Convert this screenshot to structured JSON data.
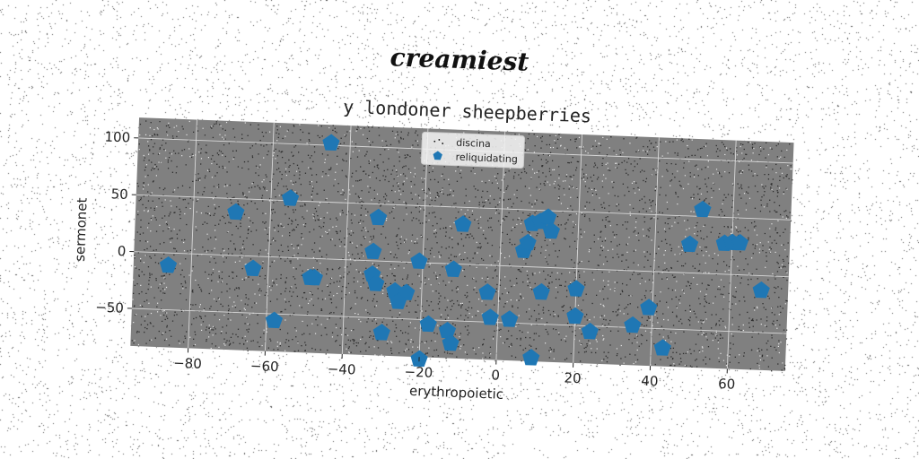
{
  "suptitle": "creamiest",
  "chart_data": {
    "type": "scatter",
    "title": "y londoner sheepberries",
    "xlabel": "erythropoietic",
    "ylabel": "sermonet",
    "xlim": [
      -95,
      75
    ],
    "ylim": [
      -83,
      118
    ],
    "xticks": [
      -80,
      -60,
      -40,
      -20,
      0,
      20,
      40,
      60
    ],
    "yticks": [
      -50,
      0,
      50,
      100
    ],
    "grid": true,
    "legend_position": "upper center",
    "background": "#808080",
    "series": [
      {
        "name": "discina",
        "marker": "dot",
        "color": "#111111",
        "note": "dense noise cloud of tiny dots"
      },
      {
        "name": "reliquidating",
        "marker": "pentagon",
        "color": "#1f77b4",
        "points": [
          [
            -45,
            102
          ],
          [
            -55,
            52
          ],
          [
            -69,
            38
          ],
          [
            -32,
            38
          ],
          [
            -10,
            35
          ],
          [
            -33,
            8
          ],
          [
            -21,
            1
          ],
          [
            -12,
            -5
          ],
          [
            -33,
            -12
          ],
          [
            -32,
            -20
          ],
          [
            -48,
            -17
          ],
          [
            -49,
            -17
          ],
          [
            -86,
            -11
          ],
          [
            -64,
            -11
          ],
          [
            -27,
            -26
          ],
          [
            -24,
            -27
          ],
          [
            -26,
            -35
          ],
          [
            -3,
            -24
          ],
          [
            -2,
            -46
          ],
          [
            3,
            -47
          ],
          [
            -13,
            -59
          ],
          [
            -18,
            -54
          ],
          [
            -58,
            -56
          ],
          [
            -30,
            -63
          ],
          [
            -12,
            -70
          ],
          [
            -20,
            -85
          ],
          [
            9,
            -80
          ],
          [
            11,
            -22
          ],
          [
            20,
            -18
          ],
          [
            20,
            -42
          ],
          [
            24,
            -55
          ],
          [
            35,
            -48
          ],
          [
            39,
            -32
          ],
          [
            43,
            -67
          ],
          [
            6,
            14
          ],
          [
            7,
            21
          ],
          [
            8,
            38
          ],
          [
            10,
            40
          ],
          [
            12,
            44
          ],
          [
            13,
            32
          ],
          [
            49,
            25
          ],
          [
            52,
            56
          ],
          [
            58,
            27
          ],
          [
            60,
            28
          ],
          [
            62,
            28
          ],
          [
            68,
            -13
          ]
        ]
      }
    ]
  }
}
